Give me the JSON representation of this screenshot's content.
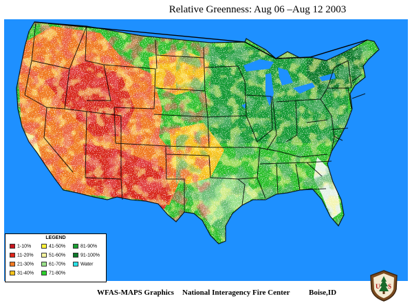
{
  "title": "Relative Greenness:  Aug 06 –Aug 12 2003",
  "legend": {
    "title": "LEGEND",
    "items": [
      {
        "label": "1-10%",
        "color": "#c8141e"
      },
      {
        "label": "11-20%",
        "color": "#e0251a"
      },
      {
        "label": "21-30%",
        "color": "#f47a22"
      },
      {
        "label": "31-40%",
        "color": "#f6c21c"
      },
      {
        "label": "41-50%",
        "color": "#fff23a"
      },
      {
        "label": "51-60%",
        "color": "#f4f4a0"
      },
      {
        "label": "61-70%",
        "color": "#9be08a"
      },
      {
        "label": "71-80%",
        "color": "#2cd12c"
      },
      {
        "label": "81-90%",
        "color": "#1aa032"
      },
      {
        "label": "91-100%",
        "color": "#0d7a2a"
      },
      {
        "label": "Water",
        "color": "#29e0e6"
      }
    ]
  },
  "footer": {
    "left": "WFAS-MAPS Graphics",
    "center": "National Interagency Fire Center",
    "right": "Boise,ID"
  },
  "seal": {
    "text": "U S"
  },
  "colors": {
    "ocean": "#1e90ff",
    "lakes": "#1e90ff",
    "land_base": "#2bbf2b"
  }
}
